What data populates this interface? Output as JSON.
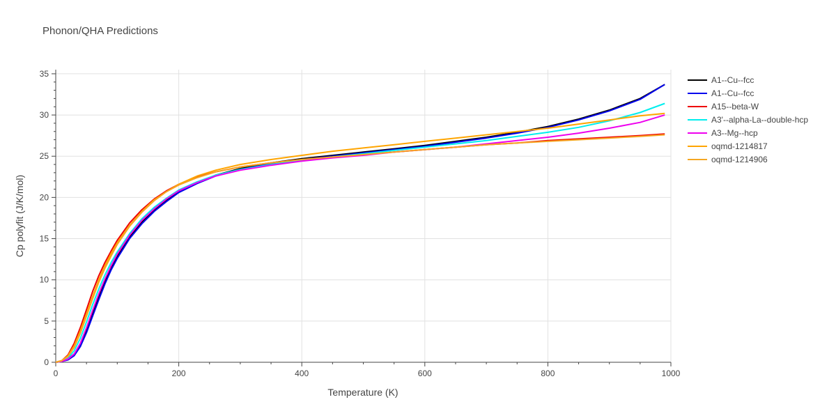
{
  "chart_data": {
    "type": "line",
    "title": "Phonon/QHA Predictions",
    "xlabel": "Temperature (K)",
    "ylabel": "Cp polyfit (J/K/mol)",
    "xlim": [
      0,
      1000
    ],
    "ylim": [
      0,
      35.5
    ],
    "xticks": [
      0,
      200,
      400,
      600,
      800,
      1000
    ],
    "yticks": [
      0,
      5,
      10,
      15,
      20,
      25,
      30,
      35
    ],
    "grid": true,
    "legend_position": "right",
    "x": [
      0,
      10,
      20,
      30,
      40,
      50,
      60,
      70,
      80,
      90,
      100,
      120,
      140,
      160,
      180,
      200,
      230,
      260,
      300,
      350,
      400,
      450,
      500,
      550,
      600,
      650,
      700,
      750,
      800,
      850,
      900,
      950,
      990
    ],
    "series": [
      {
        "name": "A1--Cu--fcc",
        "color": "#000000",
        "values": [
          0,
          0.1,
          0.4,
          1.0,
          2.2,
          4.0,
          6.0,
          8.0,
          9.9,
          11.5,
          12.9,
          15.2,
          17.0,
          18.5,
          19.7,
          20.7,
          21.8,
          22.7,
          23.5,
          24.2,
          24.7,
          25.1,
          25.5,
          25.9,
          26.3,
          26.8,
          27.3,
          27.9,
          28.6,
          29.5,
          30.6,
          32.0,
          33.7
        ]
      },
      {
        "name": "A1--Cu--fcc",
        "color": "#0000ee",
        "values": [
          0,
          0.1,
          0.3,
          0.8,
          1.9,
          3.6,
          5.6,
          7.6,
          9.5,
          11.2,
          12.6,
          15.0,
          16.8,
          18.3,
          19.5,
          20.6,
          21.7,
          22.6,
          23.4,
          24.1,
          24.6,
          25.0,
          25.4,
          25.8,
          26.2,
          26.7,
          27.2,
          27.8,
          28.5,
          29.4,
          30.5,
          31.9,
          33.7
        ]
      },
      {
        "name": "A15--beta-W",
        "color": "#ee0000",
        "values": [
          0,
          0.2,
          0.9,
          2.3,
          4.2,
          6.4,
          8.6,
          10.5,
          12.1,
          13.5,
          14.8,
          16.9,
          18.5,
          19.8,
          20.8,
          21.6,
          22.5,
          23.1,
          23.7,
          24.2,
          24.6,
          24.9,
          25.2,
          25.5,
          25.8,
          26.1,
          26.4,
          26.6,
          26.9,
          27.1,
          27.3,
          27.5,
          27.7
        ]
      },
      {
        "name": "A3'--alpha-La--double-hcp",
        "color": "#00eeee",
        "values": [
          0,
          0.1,
          0.5,
          1.4,
          2.9,
          4.9,
          7.0,
          8.9,
          10.6,
          12.1,
          13.4,
          15.6,
          17.4,
          18.8,
          19.9,
          20.9,
          21.9,
          22.7,
          23.4,
          24.0,
          24.5,
          24.9,
          25.3,
          25.7,
          26.1,
          26.5,
          26.9,
          27.4,
          27.9,
          28.5,
          29.3,
          30.3,
          31.4
        ]
      },
      {
        "name": "A3--Mg--hcp",
        "color": "#ee00ee",
        "values": [
          0,
          0.1,
          0.4,
          1.0,
          2.3,
          4.2,
          6.3,
          8.3,
          10.1,
          11.7,
          13.1,
          15.4,
          17.2,
          18.6,
          19.8,
          20.8,
          21.8,
          22.6,
          23.3,
          23.9,
          24.4,
          24.8,
          25.1,
          25.5,
          25.8,
          26.1,
          26.5,
          26.9,
          27.3,
          27.8,
          28.4,
          29.1,
          30.0
        ]
      },
      {
        "name": "oqmd-1214817",
        "color": "#ffa500",
        "values": [
          0,
          0.2,
          0.8,
          2.0,
          3.8,
          5.9,
          8.0,
          10.0,
          11.7,
          13.2,
          14.5,
          16.6,
          18.3,
          19.7,
          20.7,
          21.6,
          22.6,
          23.3,
          24.0,
          24.6,
          25.1,
          25.6,
          26.0,
          26.4,
          26.8,
          27.2,
          27.6,
          28.0,
          28.4,
          28.9,
          29.4,
          29.9,
          30.2
        ]
      },
      {
        "name": "oqmd-1214906",
        "color": "#f5a623",
        "values": [
          0,
          0.2,
          0.7,
          1.8,
          3.5,
          5.6,
          7.7,
          9.7,
          11.4,
          12.9,
          14.3,
          16.5,
          18.2,
          19.6,
          20.7,
          21.5,
          22.4,
          23.1,
          23.7,
          24.2,
          24.6,
          24.9,
          25.2,
          25.5,
          25.8,
          26.1,
          26.4,
          26.6,
          26.8,
          27.0,
          27.2,
          27.4,
          27.6
        ]
      }
    ]
  }
}
